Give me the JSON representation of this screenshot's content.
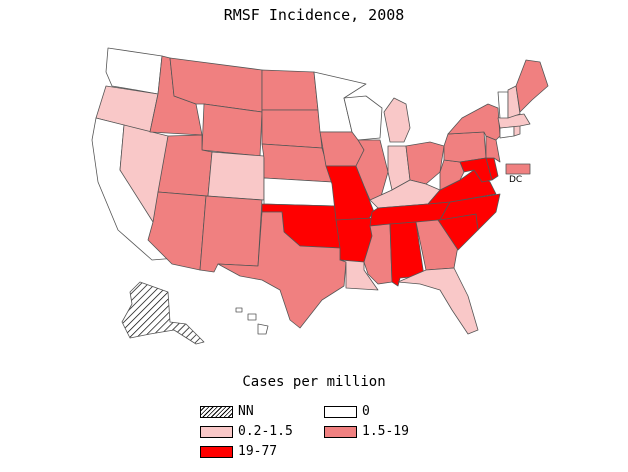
{
  "title": "RMSF Incidence, 2008",
  "colors": {
    "zero": "#ffffff",
    "low": "#f9c8c8",
    "mid": "#f08080",
    "high": "#ff0000",
    "border": "#555555"
  },
  "dc_label": "DC",
  "legend": {
    "title": "Cases per million",
    "items": [
      {
        "label": "NN",
        "class": "nn"
      },
      {
        "label": "0",
        "class": "zero"
      },
      {
        "label": "0.2-1.5",
        "class": "low"
      },
      {
        "label": "1.5-19",
        "class": "mid"
      },
      {
        "label": "19-77",
        "class": "high"
      }
    ]
  },
  "states": {
    "WA": "zero",
    "OR": "low",
    "CA": "zero",
    "NV": "low",
    "ID": "mid",
    "MT": "mid",
    "WY": "mid",
    "UT": "mid",
    "AZ": "mid",
    "CO": "low",
    "NM": "mid",
    "ND": "mid",
    "SD": "mid",
    "NE": "mid",
    "KS": "zero",
    "OK": "high",
    "TX": "mid",
    "MN": "zero",
    "IA": "mid",
    "MO": "high",
    "AR": "high",
    "LA": "low",
    "WI": "zero",
    "IL": "mid",
    "MI": "low",
    "IN": "low",
    "OH": "mid",
    "KY": "low",
    "TN": "high",
    "MS": "mid",
    "AL": "high",
    "GA": "mid",
    "FL": "low",
    "SC": "high",
    "NC": "high",
    "VA": "high",
    "WV": "mid",
    "PA": "mid",
    "NY": "mid",
    "VT": "zero",
    "NH": "low",
    "ME": "mid",
    "MA": "low",
    "CT": "zero",
    "RI": "low",
    "NJ": "mid",
    "DE": "high",
    "MD": "high",
    "DC": "mid",
    "AK": "nn",
    "HI": "zero"
  }
}
